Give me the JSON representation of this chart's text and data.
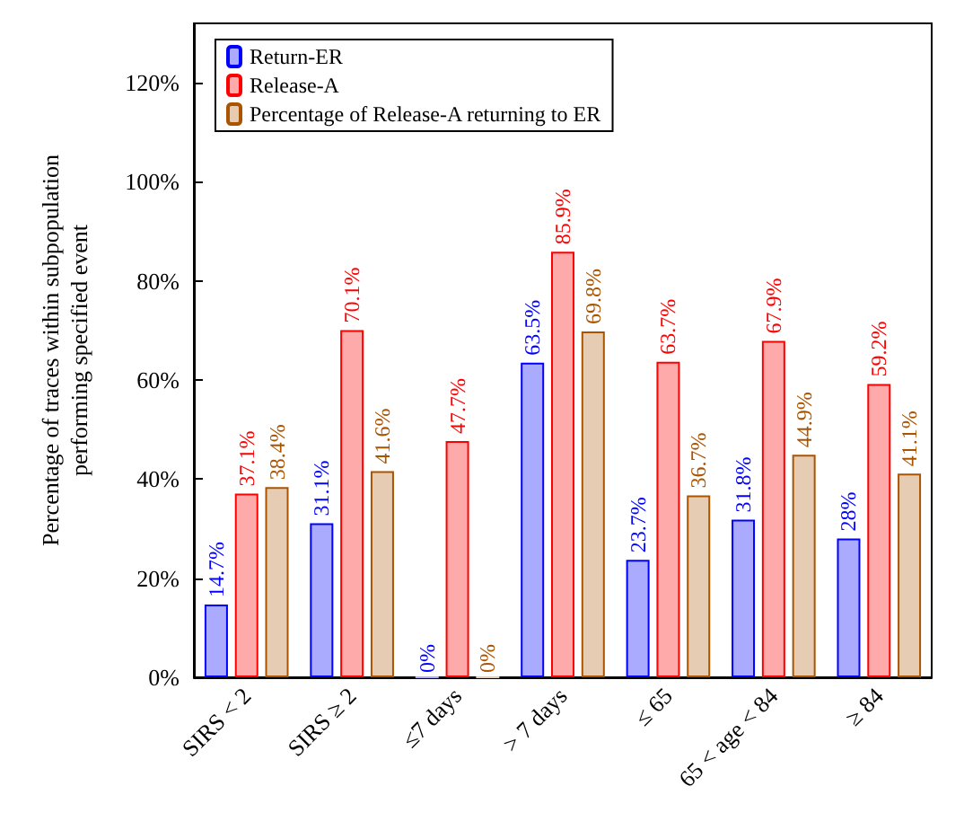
{
  "chart_data": {
    "type": "bar",
    "ylabel": "Percentage of traces within subpopulation\nperforming specified event",
    "categories": [
      "SIRS < 2",
      "SIRS ≥ 2",
      "≤7 days",
      "> 7 days",
      "≤ 65",
      "65 < age < 84",
      "≥ 84"
    ],
    "series": [
      {
        "name": "Return-ER",
        "color": "#aaaaff",
        "values": [
          14.7,
          31.1,
          0,
          63.5,
          23.7,
          31.8,
          28
        ],
        "value_labels": [
          "14.7%",
          "31.1%",
          "0%",
          "63.5%",
          "23.7%",
          "31.8%",
          "28%"
        ]
      },
      {
        "name": "Release-A",
        "color": "#ffaaaa",
        "values": [
          37.1,
          70.1,
          47.7,
          85.9,
          63.7,
          67.9,
          59.2
        ],
        "value_labels": [
          "37.1%",
          "70.1%",
          "47.7%",
          "85.9%",
          "63.7%",
          "67.9%",
          "59.2%"
        ]
      },
      {
        "name": "Percentage of Release-A returning to ER",
        "color": "#e6ccb3",
        "values": [
          38.4,
          41.6,
          0,
          69.8,
          36.7,
          44.9,
          41.1
        ],
        "value_labels": [
          "38.4%",
          "41.6%",
          "0%",
          "69.8%",
          "36.7%",
          "44.9%",
          "41.1%"
        ]
      }
    ],
    "ylim": [
      0,
      132
    ],
    "yticks": [
      {
        "value": 0,
        "label": "0%"
      },
      {
        "value": 20,
        "label": "20%"
      },
      {
        "value": 40,
        "label": "40%"
      },
      {
        "value": 60,
        "label": "60%"
      },
      {
        "value": 80,
        "label": "80%"
      },
      {
        "value": 100,
        "label": "100%"
      },
      {
        "value": 120,
        "label": "120%"
      }
    ],
    "grid": false,
    "legend": "top left"
  }
}
